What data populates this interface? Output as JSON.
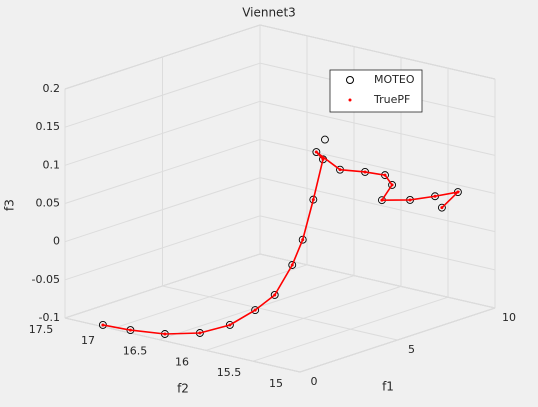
{
  "chart_data": {
    "type": "scatter3d",
    "title": "Viennet3",
    "xlabel": "f1",
    "ylabel": "f2",
    "zlabel": "f3",
    "xlim": [
      0,
      10
    ],
    "ylim": [
      15,
      17.5
    ],
    "zlim": [
      -0.1,
      0.2
    ],
    "xticks": [
      0,
      5,
      10
    ],
    "yticks": [
      15,
      15.5,
      16,
      16.5,
      17,
      17.5
    ],
    "zticks": [
      -0.1,
      -0.05,
      0,
      0.05,
      0.1,
      0.15,
      0.2
    ],
    "grid": true,
    "legend": "northeast",
    "series": [
      {
        "name": "MOTEO",
        "color": "#000000",
        "marker": "circle",
        "x": [
          0.16,
          0.27,
          0.64,
          1.47,
          2.14,
          3.34,
          4.44,
          4.76,
          5.2,
          5.6,
          6.0,
          5.9,
          6.39,
          6.71,
          6.77,
          6.65,
          6.37,
          7.33,
          8.13,
          8.58,
          8.0,
          6.1
        ],
        "y": [
          17.13,
          16.86,
          16.57,
          16.37,
          16.19,
          16.17,
          16.19,
          16.07,
          16.05,
          16.02,
          16.0,
          16.05,
          15.9,
          15.7,
          15.5,
          15.4,
          15.45,
          15.35,
          15.25,
          15.1,
          15.15,
          16.0
        ],
        "z": [
          -0.1,
          -0.1,
          -0.1,
          -0.1,
          -0.09,
          -0.08,
          -0.07,
          -0.03,
          0.0,
          0.05,
          0.1,
          0.109,
          0.086,
          0.086,
          0.087,
          0.078,
          0.059,
          0.054,
          0.055,
          0.061,
          0.044,
          0.125
        ]
      },
      {
        "name": "TruePF",
        "color": "#ff0000",
        "marker": "dot",
        "x": [
          0.16,
          0.27,
          0.64,
          1.47,
          2.14,
          3.34,
          4.44,
          4.76,
          5.2,
          5.6,
          6.0,
          5.9,
          6.39,
          6.71,
          6.77,
          6.65,
          6.37,
          7.33,
          8.13,
          8.58,
          8.0
        ],
        "y": [
          17.13,
          16.86,
          16.57,
          16.37,
          16.19,
          16.17,
          16.19,
          16.07,
          16.05,
          16.02,
          16.0,
          16.05,
          15.9,
          15.7,
          15.5,
          15.4,
          15.45,
          15.35,
          15.25,
          15.1,
          15.15
        ],
        "z": [
          -0.1,
          -0.1,
          -0.1,
          -0.1,
          -0.09,
          -0.08,
          -0.07,
          -0.03,
          0.0,
          0.05,
          0.1,
          0.109,
          0.086,
          0.086,
          0.087,
          0.078,
          0.059,
          0.054,
          0.055,
          0.061,
          0.044
        ]
      }
    ]
  }
}
